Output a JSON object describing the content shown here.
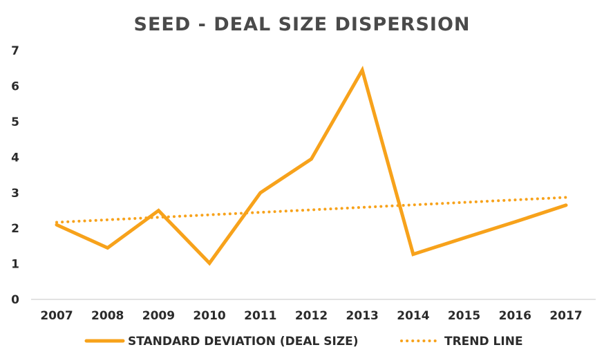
{
  "chart_data": {
    "type": "line",
    "title": "SEED - DEAL SIZE DISPERSION",
    "xlabel": "",
    "ylabel": "",
    "categories": [
      "2007",
      "2008",
      "2009",
      "2010",
      "2011",
      "2012",
      "2013",
      "2014",
      "2015",
      "2016",
      "2017"
    ],
    "y_ticks": [
      "0",
      "1",
      "2",
      "3",
      "4",
      "5",
      "6",
      "7"
    ],
    "ylim": [
      0,
      7
    ],
    "grid": false,
    "legend_position": "bottom",
    "series": [
      {
        "name": "STANDARD DEVIATION (DEAL SIZE)",
        "style": "solid",
        "color": "#F7A21B",
        "values": [
          2.1,
          1.45,
          2.5,
          1.02,
          3.0,
          3.95,
          6.45,
          1.27,
          1.73,
          2.18,
          2.65
        ]
      },
      {
        "name": "TREND LINE",
        "style": "dotted",
        "color": "#F7A21B",
        "values": [
          2.17,
          2.24,
          2.31,
          2.38,
          2.45,
          2.52,
          2.59,
          2.66,
          2.73,
          2.8,
          2.87
        ]
      }
    ]
  }
}
